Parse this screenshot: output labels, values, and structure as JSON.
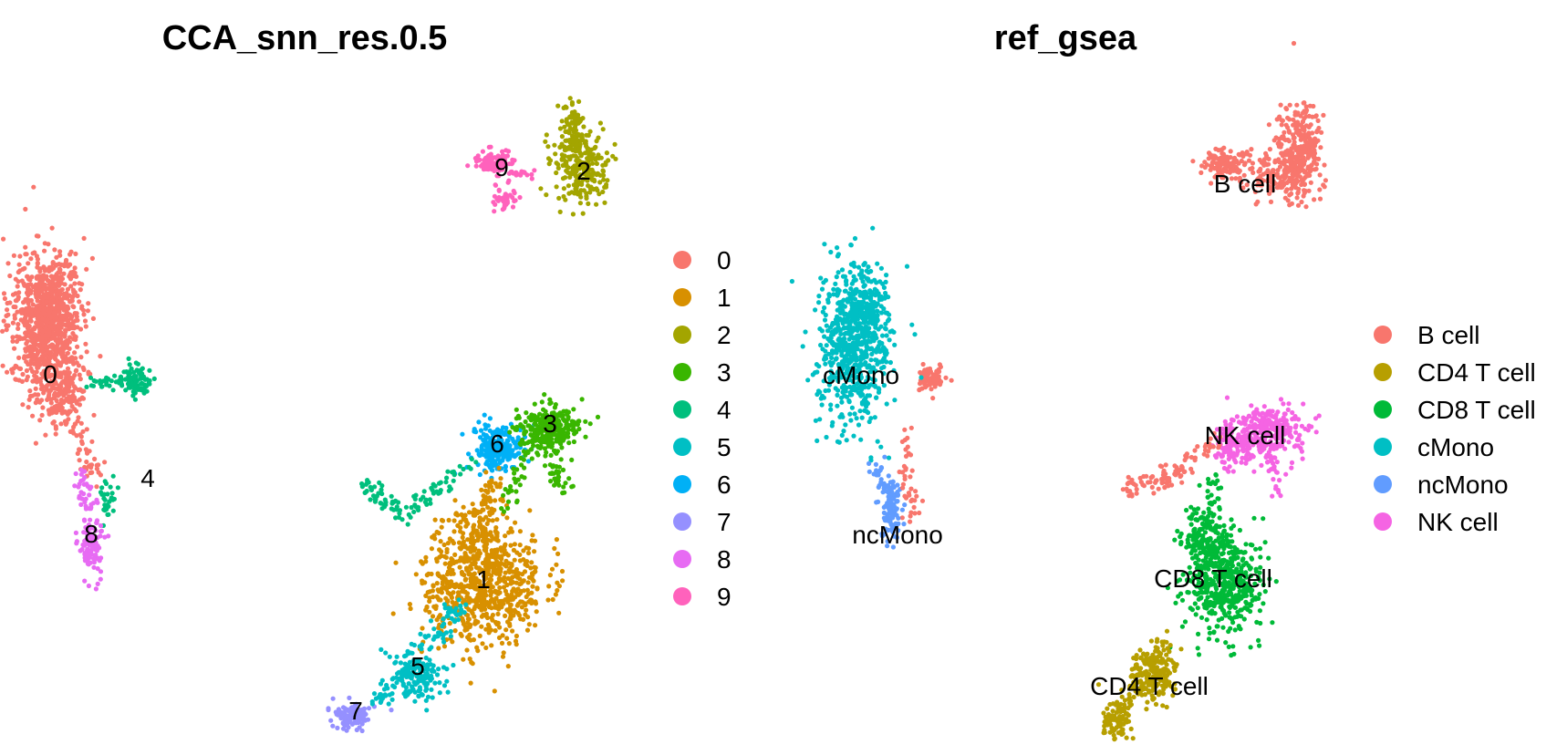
{
  "chart_data": [
    {
      "type": "scatter",
      "title": "CCA_snn_res.0.5",
      "xlabel": "",
      "ylabel": "",
      "grid": false,
      "axes": "none",
      "legend_position": "right",
      "groups": [
        "0",
        "1",
        "2",
        "3",
        "4",
        "5",
        "6",
        "7",
        "8",
        "9"
      ],
      "colors": {
        "0": "#F8766D",
        "1": "#D89000",
        "2": "#A3A500",
        "3": "#39B600",
        "4": "#00BF7D",
        "5": "#00BFC4",
        "6": "#00B0F6",
        "7": "#9590FF",
        "8": "#E76BF3",
        "9": "#FF62BC"
      },
      "cluster_labels": [
        "0",
        "1",
        "2",
        "3",
        "4",
        "5",
        "6",
        "7",
        "8",
        "9"
      ]
    },
    {
      "type": "scatter",
      "title": "ref_gsea",
      "xlabel": "",
      "ylabel": "",
      "grid": false,
      "axes": "none",
      "legend_position": "right",
      "groups": [
        "B cell",
        "CD4 T cell",
        "CD8 T cell",
        "cMono",
        "ncMono",
        "NK cell"
      ],
      "colors": {
        "B cell": "#F8766D",
        "CD4 T cell": "#B79F00",
        "CD8 T cell": "#00BA38",
        "cMono": "#00BFC4",
        "ncMono": "#619CFF",
        "NK cell": "#F564E3"
      },
      "cluster_labels": [
        "B cell",
        "NK cell",
        "cMono",
        "ncMono",
        "CD8 T cell",
        "CD4 T cell"
      ]
    }
  ]
}
